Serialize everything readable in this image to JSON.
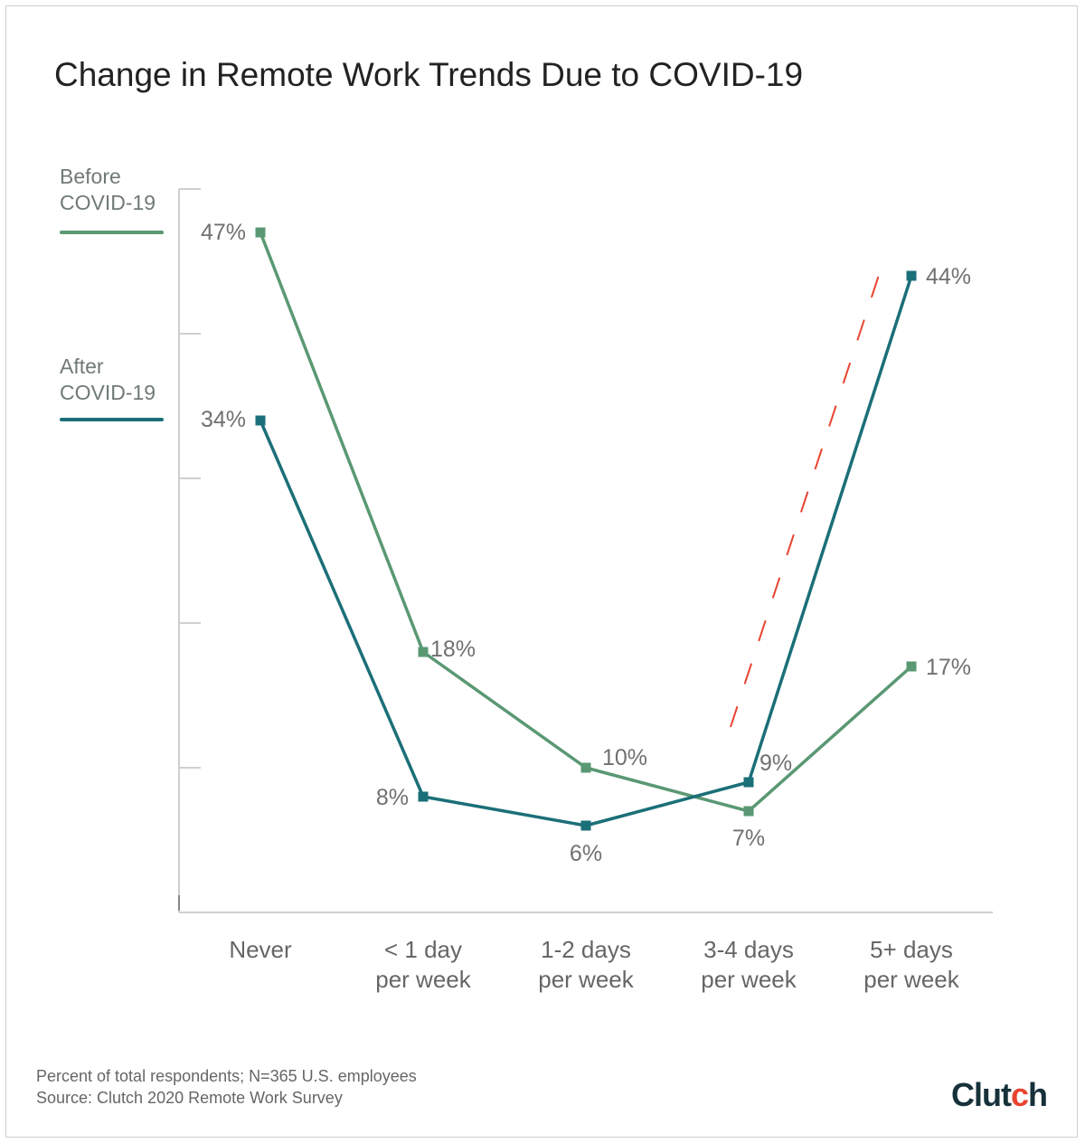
{
  "chart_data": {
    "type": "line",
    "title": "Change in Remote Work Trends Due to COVID-19",
    "categories": [
      [
        "Never"
      ],
      [
        "< 1 day",
        "per week"
      ],
      [
        "1-2 days",
        "per week"
      ],
      [
        "3-4 days",
        "per week"
      ],
      [
        "5+ days",
        "per week"
      ]
    ],
    "series": [
      {
        "name": "Before COVID-19",
        "name_lines": [
          "Before",
          "COVID-19"
        ],
        "values": [
          47,
          18,
          10,
          7,
          17
        ],
        "labels": [
          "47%",
          "18%",
          "10%",
          "7%",
          "17%"
        ],
        "color": "#5a9873"
      },
      {
        "name": "After COVID-19",
        "name_lines": [
          "After",
          "COVID-19"
        ],
        "values": [
          34,
          8,
          6,
          9,
          44
        ],
        "labels": [
          "34%",
          "8%",
          "6%",
          "9%",
          "44%"
        ],
        "color": "#1b6f78"
      }
    ],
    "ylim": [
      0,
      50
    ],
    "unit": "%",
    "annotation": {
      "type": "dashed-trend-arrow",
      "color": "#e8432f"
    }
  },
  "footnotes": {
    "note": "Percent of total respondents; N=365 U.S. employees",
    "source": "Source: Clutch 2020 Remote Work Survey"
  },
  "brand": {
    "logo_prefix": "Clut",
    "logo_dot_letter": "c",
    "logo_suffix": "h"
  }
}
